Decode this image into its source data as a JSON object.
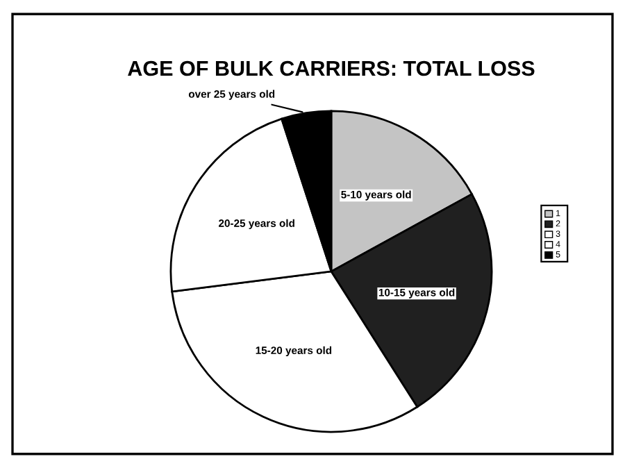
{
  "chart_data": {
    "type": "pie",
    "title": "AGE OF BULK CARRIERS: TOTAL LOSS",
    "categories": [
      "5-10 years old",
      "10-15 years old",
      "15-20 years old",
      "20-25 years old",
      "over 25 years old"
    ],
    "values": [
      17,
      24,
      32,
      22,
      5
    ],
    "colors": [
      "#c4c4c4",
      "#202020",
      "#ffffff",
      "#ffffff",
      "#000000"
    ],
    "annotations": [
      "1",
      "2",
      "3",
      "4",
      "5"
    ]
  }
}
